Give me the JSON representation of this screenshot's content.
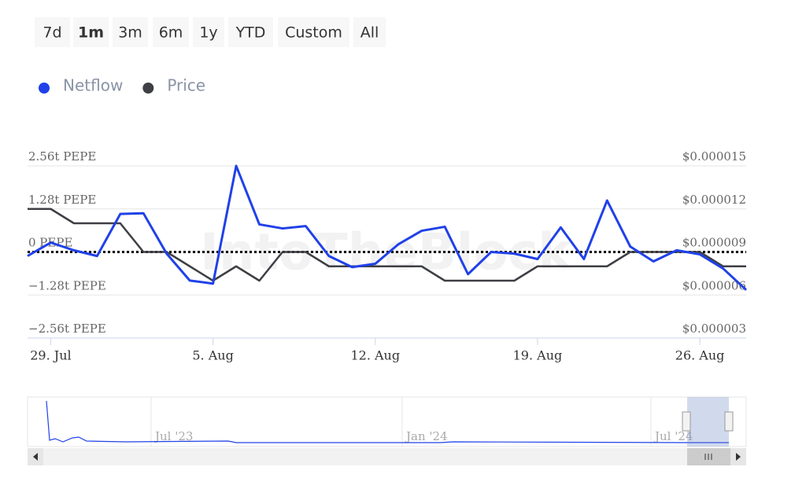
{
  "range_selector": {
    "buttons": [
      "7d",
      "1m",
      "3m",
      "6m",
      "1y",
      "YTD",
      "Custom",
      "All"
    ],
    "selected_index": 1
  },
  "chart_data": {
    "type": "line",
    "watermark": "IntoTheBlock",
    "categories": [
      null,
      "29. Jul",
      null,
      null,
      null,
      null,
      null,
      null,
      "5. Aug",
      null,
      null,
      null,
      null,
      null,
      null,
      "12. Aug",
      null,
      null,
      null,
      null,
      null,
      null,
      "19. Aug",
      null,
      null,
      null,
      null,
      null,
      null,
      "26. Aug",
      null,
      null
    ],
    "series": [
      {
        "name": "Netflow",
        "color": "#2041e8",
        "axis": "y",
        "values": [
          -0.12,
          0.28,
          0.05,
          -0.12,
          1.13,
          1.15,
          -0.05,
          -0.85,
          -0.94,
          2.56,
          0.82,
          0.7,
          0.77,
          -0.12,
          -0.45,
          -0.35,
          0.23,
          0.63,
          0.75,
          -0.66,
          0,
          -0.05,
          -0.21,
          0.73,
          -0.21,
          1.53,
          0.16,
          -0.28,
          0.05,
          -0.07,
          -0.49,
          -1.13
        ]
      },
      {
        "name": "Price",
        "color": "#3d3f44",
        "axis": "y2",
        "values": [
          1.2e-05,
          1.2e-05,
          1.1e-05,
          1.1e-05,
          1.1e-05,
          9e-06,
          9e-06,
          8e-06,
          7e-06,
          8e-06,
          7e-06,
          9e-06,
          9e-06,
          8e-06,
          8e-06,
          8e-06,
          8e-06,
          8e-06,
          7e-06,
          7e-06,
          7e-06,
          7e-06,
          8e-06,
          8e-06,
          8e-06,
          8e-06,
          9e-06,
          9e-06,
          9e-06,
          9e-06,
          8e-06,
          8e-06
        ]
      }
    ],
    "ylim": [
      -2.56,
      2.56
    ],
    "yticks": [
      {
        "value": 2.56,
        "label": "2.56t PEPE"
      },
      {
        "value": 1.28,
        "label": "1.28t PEPE"
      },
      {
        "value": 0,
        "label": "0 PEPE"
      },
      {
        "value": -1.28,
        "label": "−1.28t PEPE"
      },
      {
        "value": -2.56,
        "label": "−2.56t PEPE"
      }
    ],
    "y2lim": [
      3e-06,
      1.5e-05
    ],
    "y2ticks": [
      {
        "value": 1.5e-05,
        "label": "$0.000015"
      },
      {
        "value": 1.2e-05,
        "label": "$0.000012"
      },
      {
        "value": 9e-06,
        "label": "$0.000009"
      },
      {
        "value": 6e-06,
        "label": "$0.000006"
      },
      {
        "value": 3e-06,
        "label": "$0.000003"
      }
    ],
    "grid": true,
    "legend": "top-left"
  },
  "navigator": {
    "labels": [
      "Jul '23",
      "Jan '24",
      "Jul '24"
    ]
  }
}
